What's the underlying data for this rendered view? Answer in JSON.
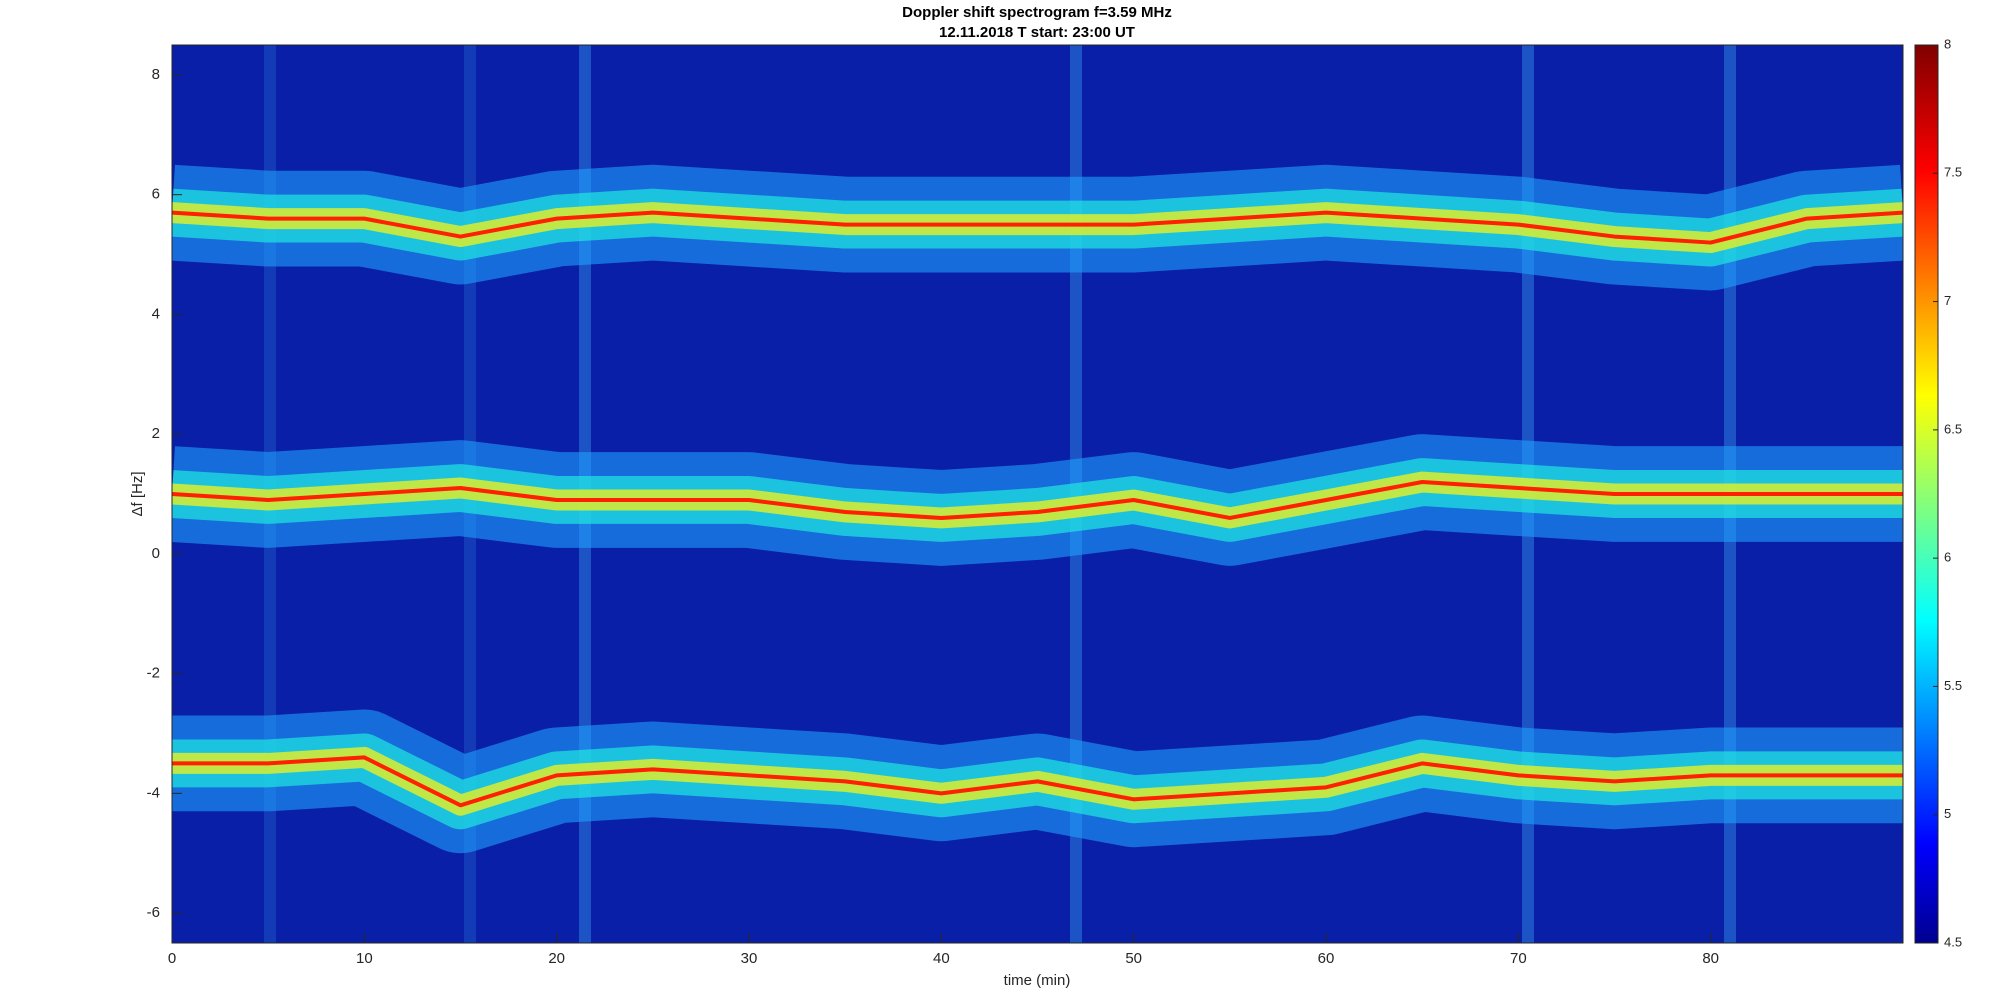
{
  "chart_data": {
    "type": "spectrogram",
    "title": "Doppler shift spectrogram f=3.59 MHz",
    "subtitle": "12.11.2018   T start: 23:00 UT",
    "x_label": "time (min)",
    "y_label": "Δf [Hz]",
    "x": [
      0,
      5,
      10,
      15,
      20,
      25,
      30,
      35,
      40,
      45,
      50,
      55,
      60,
      65,
      70,
      75,
      80,
      85,
      90
    ],
    "series": [
      {
        "color": "#ff2000",
        "values": [
          5.7,
          5.6,
          5.6,
          5.3,
          5.6,
          5.7,
          5.6,
          5.5,
          5.5,
          5.5,
          5.5,
          5.6,
          5.7,
          5.6,
          5.5,
          5.3,
          5.2,
          5.6,
          5.7
        ]
      },
      {
        "color": "#ff2000",
        "values": [
          1.0,
          0.9,
          1.0,
          1.1,
          0.9,
          0.9,
          0.9,
          0.7,
          0.6,
          0.7,
          0.9,
          0.6,
          0.9,
          1.2,
          1.1,
          1.0,
          1.0,
          1.0,
          1.0
        ]
      },
      {
        "color": "#ff2000",
        "values": [
          -3.5,
          -3.5,
          -3.4,
          -4.2,
          -3.7,
          -3.6,
          -3.7,
          -3.8,
          -4.0,
          -3.8,
          -4.1,
          -4.0,
          -3.9,
          -3.5,
          -3.7,
          -3.8,
          -3.7,
          -3.7,
          -3.7
        ]
      }
    ],
    "xlim": [
      0,
      90
    ],
    "xticks": [
      0,
      10,
      20,
      30,
      40,
      50,
      60,
      70,
      80
    ],
    "ylim": [
      -6.5,
      8.5
    ],
    "yticks": [
      -6,
      -4,
      -2,
      0,
      2,
      4,
      6,
      8
    ],
    "colormap": "jet",
    "background_color": "#0a1fa8",
    "clim": [
      4.5,
      8
    ],
    "cticks": [
      4.5,
      5,
      5.5,
      6,
      6.5,
      7,
      7.5,
      8
    ]
  }
}
